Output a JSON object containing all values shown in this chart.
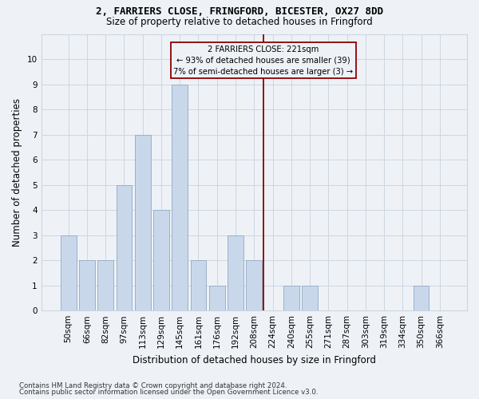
{
  "title1": "2, FARRIERS CLOSE, FRINGFORD, BICESTER, OX27 8DD",
  "title2": "Size of property relative to detached houses in Fringford",
  "xlabel": "Distribution of detached houses by size in Fringford",
  "ylabel": "Number of detached properties",
  "categories": [
    "50sqm",
    "66sqm",
    "82sqm",
    "97sqm",
    "113sqm",
    "129sqm",
    "145sqm",
    "161sqm",
    "176sqm",
    "192sqm",
    "208sqm",
    "224sqm",
    "240sqm",
    "255sqm",
    "271sqm",
    "287sqm",
    "303sqm",
    "319sqm",
    "334sqm",
    "350sqm",
    "366sqm"
  ],
  "values": [
    3,
    2,
    2,
    5,
    7,
    4,
    9,
    2,
    1,
    3,
    2,
    0,
    1,
    1,
    0,
    0,
    0,
    0,
    0,
    1,
    0
  ],
  "bar_color": "#c8d8ea",
  "bar_edge_color": "#9ab0c8",
  "vline_x": 10.5,
  "vline_color": "#8b0000",
  "annotation_line1": "2 FARRIERS CLOSE: 221sqm",
  "annotation_line2": "← 93% of detached houses are smaller (39)",
  "annotation_line3": "7% of semi-detached houses are larger (3) →",
  "annotation_box_color": "#8b0000",
  "ylim": [
    0,
    11
  ],
  "yticks": [
    0,
    1,
    2,
    3,
    4,
    5,
    6,
    7,
    8,
    9,
    10,
    11
  ],
  "footnote1": "Contains HM Land Registry data © Crown copyright and database right 2024.",
  "footnote2": "Contains public sector information licensed under the Open Government Licence v3.0.",
  "bg_color": "#eef2f7",
  "grid_color": "#ccd6e0"
}
